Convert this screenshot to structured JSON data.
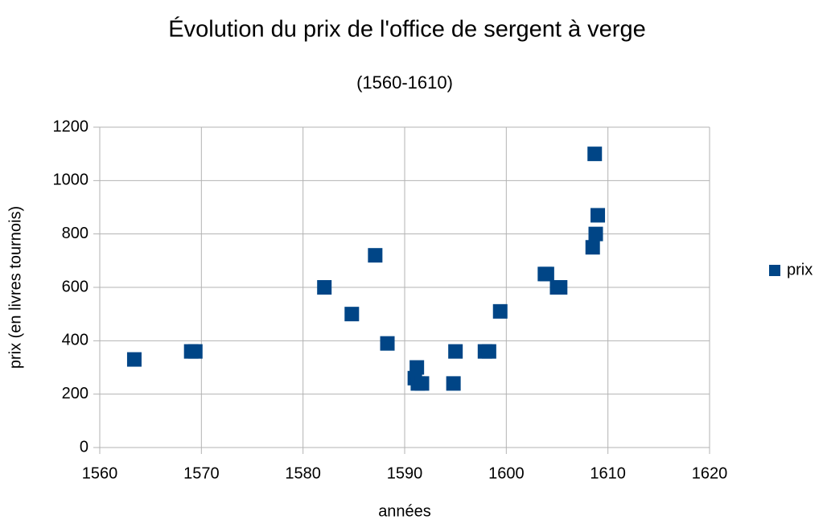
{
  "chart_data": {
    "type": "scatter",
    "title": "Évolution du prix de l'office de sergent à verge",
    "subtitle": "(1560-1610)",
    "x_label": "années",
    "y_label": "prix (en livres tournois)",
    "series": [
      {
        "name": "prix",
        "color": "#004586",
        "x": [
          1563.4,
          1569.0,
          1569.4,
          1582.1,
          1584.8,
          1587.1,
          1588.3,
          1591.0,
          1591.2,
          1591.3,
          1591.7,
          1594.8,
          1595.0,
          1597.9,
          1598.3,
          1599.4,
          1603.8,
          1604.0,
          1605.0,
          1605.3,
          1608.5,
          1608.7,
          1608.8,
          1609.0
        ],
        "values": [
          330,
          360,
          360,
          600,
          500,
          720,
          390,
          260,
          300,
          240,
          240,
          240,
          360,
          360,
          360,
          510,
          650,
          650,
          600,
          600,
          750,
          1100,
          800,
          870
        ]
      }
    ],
    "xlim": [
      1560,
      1620
    ],
    "xticks": [
      1560,
      1570,
      1580,
      1590,
      1600,
      1610,
      1620
    ],
    "ylim": [
      0,
      1200
    ],
    "yticks": [
      0,
      200,
      400,
      600,
      800,
      1000,
      1200
    ],
    "grid": true,
    "legend": "right"
  }
}
